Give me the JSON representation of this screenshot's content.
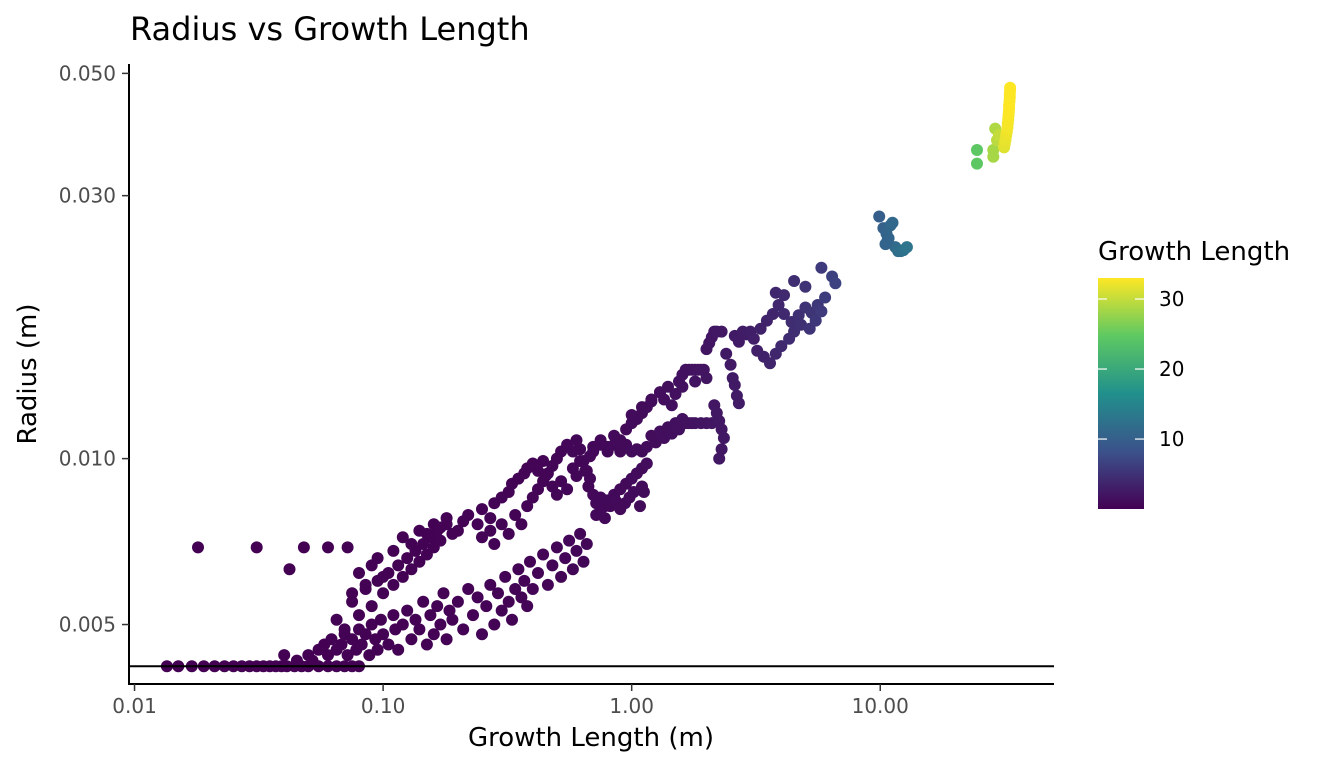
{
  "chart_data": {
    "type": "scatter",
    "title": "Radius vs Growth Length",
    "xlabel": "Growth Length (m)",
    "ylabel": "Radius (m)",
    "x_scale": "log10",
    "y_scale": "log10",
    "xlim": [
      0.0095,
      50
    ],
    "ylim": [
      0.0039,
      0.052
    ],
    "x_ticks": [
      0.01,
      0.1,
      1,
      10
    ],
    "x_tick_labels": [
      "0.01",
      "0.10",
      "1.00",
      "10.00"
    ],
    "y_ticks": [
      0.005,
      0.01,
      0.03,
      0.05
    ],
    "y_tick_labels": [
      "0.005",
      "0.010",
      "0.030",
      "0.050"
    ],
    "hline": 0.0042,
    "grid": false,
    "color_legend": {
      "title": "Growth Length",
      "placement": "right",
      "min": 0.01,
      "max": 33,
      "ticks": [
        10,
        20,
        30
      ],
      "tick_labels": [
        "10",
        "20",
        "30"
      ],
      "palette": [
        "#440154",
        "#3b528b",
        "#21908c",
        "#5ec962",
        "#fde725"
      ]
    },
    "points": [
      [
        0.0135,
        0.0042
      ],
      [
        0.015,
        0.0042
      ],
      [
        0.017,
        0.0042
      ],
      [
        0.019,
        0.0042
      ],
      [
        0.021,
        0.0042
      ],
      [
        0.023,
        0.0042
      ],
      [
        0.025,
        0.0042
      ],
      [
        0.027,
        0.0042
      ],
      [
        0.029,
        0.0042
      ],
      [
        0.031,
        0.0042
      ],
      [
        0.033,
        0.0042
      ],
      [
        0.035,
        0.0042
      ],
      [
        0.037,
        0.0042
      ],
      [
        0.039,
        0.0042
      ],
      [
        0.041,
        0.0042
      ],
      [
        0.044,
        0.0042
      ],
      [
        0.047,
        0.0042
      ],
      [
        0.05,
        0.0042
      ],
      [
        0.055,
        0.0042
      ],
      [
        0.06,
        0.0042
      ],
      [
        0.065,
        0.0042
      ],
      [
        0.07,
        0.0042
      ],
      [
        0.075,
        0.0042
      ],
      [
        0.08,
        0.0042
      ],
      [
        0.018,
        0.0069
      ],
      [
        0.031,
        0.0069
      ],
      [
        0.048,
        0.0069
      ],
      [
        0.06,
        0.0069
      ],
      [
        0.072,
        0.0069
      ],
      [
        0.042,
        0.0063
      ],
      [
        0.04,
        0.0044
      ],
      [
        0.045,
        0.0043
      ],
      [
        0.05,
        0.0044
      ],
      [
        0.052,
        0.0043
      ],
      [
        0.055,
        0.0045
      ],
      [
        0.058,
        0.0046
      ],
      [
        0.06,
        0.0044
      ],
      [
        0.062,
        0.0047
      ],
      [
        0.065,
        0.0045
      ],
      [
        0.068,
        0.0046
      ],
      [
        0.07,
        0.0048
      ],
      [
        0.072,
        0.0044
      ],
      [
        0.075,
        0.0047
      ],
      [
        0.078,
        0.0045
      ],
      [
        0.08,
        0.0049
      ],
      [
        0.082,
        0.0046
      ],
      [
        0.085,
        0.0048
      ],
      [
        0.088,
        0.0044
      ],
      [
        0.09,
        0.005
      ],
      [
        0.093,
        0.0047
      ],
      [
        0.095,
        0.0045
      ],
      [
        0.098,
        0.0051
      ],
      [
        0.1,
        0.0048
      ],
      [
        0.105,
        0.0046
      ],
      [
        0.11,
        0.0052
      ],
      [
        0.112,
        0.0049
      ],
      [
        0.115,
        0.0045
      ],
      [
        0.12,
        0.005
      ],
      [
        0.125,
        0.0053
      ],
      [
        0.13,
        0.0047
      ],
      [
        0.135,
        0.0051
      ],
      [
        0.14,
        0.0049
      ],
      [
        0.145,
        0.0055
      ],
      [
        0.15,
        0.0046
      ],
      [
        0.155,
        0.0052
      ],
      [
        0.16,
        0.0048
      ],
      [
        0.165,
        0.0054
      ],
      [
        0.17,
        0.005
      ],
      [
        0.175,
        0.0057
      ],
      [
        0.18,
        0.0047
      ],
      [
        0.185,
        0.0053
      ],
      [
        0.19,
        0.0051
      ],
      [
        0.2,
        0.0055
      ],
      [
        0.21,
        0.0049
      ],
      [
        0.22,
        0.0058
      ],
      [
        0.23,
        0.0052
      ],
      [
        0.24,
        0.0056
      ],
      [
        0.25,
        0.0048
      ],
      [
        0.26,
        0.0054
      ],
      [
        0.27,
        0.0059
      ],
      [
        0.28,
        0.005
      ],
      [
        0.29,
        0.0057
      ],
      [
        0.3,
        0.0053
      ],
      [
        0.31,
        0.0061
      ],
      [
        0.32,
        0.0055
      ],
      [
        0.33,
        0.0051
      ],
      [
        0.34,
        0.0058
      ],
      [
        0.35,
        0.0063
      ],
      [
        0.36,
        0.0056
      ],
      [
        0.37,
        0.006
      ],
      [
        0.38,
        0.0054
      ],
      [
        0.39,
        0.0065
      ],
      [
        0.4,
        0.0058
      ],
      [
        0.42,
        0.0062
      ],
      [
        0.44,
        0.0067
      ],
      [
        0.46,
        0.0059
      ],
      [
        0.48,
        0.0064
      ],
      [
        0.5,
        0.0069
      ],
      [
        0.52,
        0.0061
      ],
      [
        0.54,
        0.0066
      ],
      [
        0.56,
        0.0071
      ],
      [
        0.58,
        0.0063
      ],
      [
        0.6,
        0.0068
      ],
      [
        0.62,
        0.0073
      ],
      [
        0.64,
        0.0065
      ],
      [
        0.66,
        0.007
      ],
      [
        0.065,
        0.0051
      ],
      [
        0.07,
        0.0049
      ],
      [
        0.075,
        0.0055
      ],
      [
        0.08,
        0.0052
      ],
      [
        0.085,
        0.0058
      ],
      [
        0.09,
        0.0054
      ],
      [
        0.095,
        0.006
      ],
      [
        0.1,
        0.0057
      ],
      [
        0.105,
        0.0062
      ],
      [
        0.11,
        0.0059
      ],
      [
        0.115,
        0.0064
      ],
      [
        0.12,
        0.0061
      ],
      [
        0.125,
        0.0066
      ],
      [
        0.13,
        0.0063
      ],
      [
        0.135,
        0.0068
      ],
      [
        0.14,
        0.0065
      ],
      [
        0.145,
        0.007
      ],
      [
        0.15,
        0.0067
      ],
      [
        0.155,
        0.0072
      ],
      [
        0.16,
        0.0069
      ],
      [
        0.165,
        0.0074
      ],
      [
        0.17,
        0.0071
      ],
      [
        0.18,
        0.0076
      ],
      [
        0.19,
        0.0073
      ],
      [
        0.075,
        0.0057
      ],
      [
        0.08,
        0.0062
      ],
      [
        0.085,
        0.0059
      ],
      [
        0.09,
        0.0064
      ],
      [
        0.095,
        0.0066
      ],
      [
        0.1,
        0.0061
      ],
      [
        0.11,
        0.0068
      ],
      [
        0.12,
        0.0072
      ],
      [
        0.13,
        0.007
      ],
      [
        0.14,
        0.0074
      ],
      [
        0.15,
        0.0073
      ],
      [
        0.16,
        0.0076
      ],
      [
        0.17,
        0.0075
      ],
      [
        0.18,
        0.0078
      ],
      [
        0.2,
        0.0074
      ],
      [
        0.21,
        0.0077
      ],
      [
        0.22,
        0.0079
      ],
      [
        0.24,
        0.0076
      ],
      [
        0.25,
        0.0081
      ],
      [
        0.27,
        0.0078
      ],
      [
        0.28,
        0.0083
      ],
      [
        0.3,
        0.0085
      ],
      [
        0.32,
        0.0087
      ],
      [
        0.33,
        0.009
      ],
      [
        0.35,
        0.0092
      ],
      [
        0.37,
        0.0094
      ],
      [
        0.38,
        0.0096
      ],
      [
        0.4,
        0.0098
      ],
      [
        0.42,
        0.0095
      ],
      [
        0.44,
        0.0099
      ],
      [
        0.25,
        0.0072
      ],
      [
        0.27,
        0.0074
      ],
      [
        0.28,
        0.007
      ],
      [
        0.3,
        0.0076
      ],
      [
        0.32,
        0.0073
      ],
      [
        0.34,
        0.0079
      ],
      [
        0.36,
        0.0076
      ],
      [
        0.38,
        0.0082
      ],
      [
        0.4,
        0.0085
      ],
      [
        0.42,
        0.0088
      ],
      [
        0.44,
        0.0091
      ],
      [
        0.46,
        0.0094
      ],
      [
        0.48,
        0.0097
      ],
      [
        0.5,
        0.01
      ],
      [
        0.52,
        0.0103
      ],
      [
        0.55,
        0.0106
      ],
      [
        0.58,
        0.0103
      ],
      [
        0.6,
        0.0108
      ],
      [
        0.62,
        0.0104
      ],
      [
        0.64,
        0.0099
      ],
      [
        0.66,
        0.0095
      ],
      [
        0.68,
        0.0092
      ],
      [
        0.45,
        0.0093
      ],
      [
        0.48,
        0.0089
      ],
      [
        0.5,
        0.0086
      ],
      [
        0.52,
        0.0091
      ],
      [
        0.55,
        0.0088
      ],
      [
        0.58,
        0.0096
      ],
      [
        0.6,
        0.0093
      ],
      [
        0.62,
        0.0099
      ],
      [
        0.65,
        0.0095
      ],
      [
        0.68,
        0.0101
      ],
      [
        0.7,
        0.0105
      ],
      [
        0.75,
        0.0108
      ],
      [
        0.8,
        0.0105
      ],
      [
        0.85,
        0.011
      ],
      [
        0.9,
        0.0108
      ],
      [
        0.95,
        0.0113
      ],
      [
        1.0,
        0.0116
      ],
      [
        1.05,
        0.0118
      ],
      [
        1.1,
        0.0121
      ],
      [
        1.15,
        0.0124
      ],
      [
        1.2,
        0.0127
      ],
      [
        0.7,
        0.0103
      ],
      [
        0.75,
        0.0106
      ],
      [
        0.8,
        0.0103
      ],
      [
        0.85,
        0.0106
      ],
      [
        0.9,
        0.0103
      ],
      [
        0.95,
        0.0106
      ],
      [
        1.0,
        0.0103
      ],
      [
        1.05,
        0.0104
      ],
      [
        1.1,
        0.0103
      ],
      [
        1.15,
        0.0105
      ],
      [
        0.67,
        0.0089
      ],
      [
        0.7,
        0.0086
      ],
      [
        0.72,
        0.0083
      ],
      [
        0.75,
        0.0085
      ],
      [
        0.78,
        0.0082
      ],
      [
        0.8,
        0.0084
      ],
      [
        0.85,
        0.0086
      ],
      [
        0.9,
        0.0088
      ],
      [
        0.95,
        0.009
      ],
      [
        1.0,
        0.0092
      ],
      [
        1.05,
        0.0094
      ],
      [
        1.1,
        0.0096
      ],
      [
        1.15,
        0.0098
      ],
      [
        0.72,
        0.0079
      ],
      [
        0.75,
        0.0081
      ],
      [
        0.78,
        0.0078
      ],
      [
        0.82,
        0.0082
      ],
      [
        0.86,
        0.0084
      ],
      [
        0.9,
        0.0081
      ],
      [
        0.94,
        0.0083
      ],
      [
        0.98,
        0.0085
      ],
      [
        1.02,
        0.0087
      ],
      [
        1.08,
        0.0082
      ],
      [
        1.1,
        0.0089
      ],
      [
        1.12,
        0.0087
      ],
      [
        1.2,
        0.011
      ],
      [
        1.25,
        0.0107
      ],
      [
        1.3,
        0.0112
      ],
      [
        1.35,
        0.0109
      ],
      [
        1.4,
        0.0114
      ],
      [
        1.45,
        0.0111
      ],
      [
        1.5,
        0.0116
      ],
      [
        1.55,
        0.0113
      ],
      [
        1.6,
        0.0118
      ],
      [
        1.65,
        0.0116
      ],
      [
        1.7,
        0.0116
      ],
      [
        1.75,
        0.0116
      ],
      [
        1.8,
        0.0116
      ],
      [
        1.9,
        0.0116
      ],
      [
        2.0,
        0.0116
      ],
      [
        2.1,
        0.0116
      ],
      [
        1.3,
        0.0132
      ],
      [
        1.35,
        0.0128
      ],
      [
        1.4,
        0.0135
      ],
      [
        1.5,
        0.0131
      ],
      [
        1.55,
        0.0138
      ],
      [
        1.6,
        0.0142
      ],
      [
        1.65,
        0.0145
      ],
      [
        1.7,
        0.0145
      ],
      [
        1.75,
        0.0145
      ],
      [
        1.8,
        0.0145
      ],
      [
        1.85,
        0.0145
      ],
      [
        1.9,
        0.0145
      ],
      [
        1.95,
        0.0145
      ],
      [
        2.0,
        0.0158
      ],
      [
        2.05,
        0.0162
      ],
      [
        2.1,
        0.0166
      ],
      [
        2.15,
        0.017
      ],
      [
        2.2,
        0.017
      ],
      [
        2.3,
        0.017
      ],
      [
        2.4,
        0.0155
      ],
      [
        2.5,
        0.0148
      ],
      [
        2.55,
        0.014
      ],
      [
        2.6,
        0.0136
      ],
      [
        2.65,
        0.013
      ],
      [
        2.7,
        0.0126
      ],
      [
        2.15,
        0.0125
      ],
      [
        2.2,
        0.0121
      ],
      [
        2.25,
        0.0117
      ],
      [
        2.3,
        0.0113
      ],
      [
        2.35,
        0.0109
      ],
      [
        2.3,
        0.0104
      ],
      [
        2.25,
        0.01
      ],
      [
        1.0,
        0.012
      ],
      [
        1.1,
        0.0124
      ],
      [
        1.2,
        0.0128
      ],
      [
        1.3,
        0.0132
      ],
      [
        1.45,
        0.0125
      ],
      [
        1.6,
        0.0135
      ],
      [
        1.8,
        0.0138
      ],
      [
        2.0,
        0.014
      ],
      [
        2.6,
        0.0167
      ],
      [
        2.7,
        0.0163
      ],
      [
        2.8,
        0.017
      ],
      [
        2.9,
        0.0168
      ],
      [
        3.0,
        0.017
      ],
      [
        3.1,
        0.0165
      ],
      [
        3.3,
        0.0172
      ],
      [
        3.5,
        0.0178
      ],
      [
        3.7,
        0.0183
      ],
      [
        3.9,
        0.019
      ],
      [
        4.1,
        0.0183
      ],
      [
        4.4,
        0.0177
      ],
      [
        4.7,
        0.0182
      ],
      [
        5.0,
        0.0188
      ],
      [
        5.3,
        0.0184
      ],
      [
        5.6,
        0.019
      ],
      [
        6.0,
        0.0196
      ],
      [
        3.2,
        0.0157
      ],
      [
        3.4,
        0.0153
      ],
      [
        3.6,
        0.0149
      ],
      [
        3.8,
        0.0155
      ],
      [
        4.0,
        0.016
      ],
      [
        4.3,
        0.0165
      ],
      [
        4.5,
        0.017
      ],
      [
        4.8,
        0.0175
      ],
      [
        5.2,
        0.0172
      ],
      [
        5.5,
        0.0178
      ],
      [
        5.8,
        0.0185
      ],
      [
        3.8,
        0.02
      ],
      [
        4.1,
        0.0198
      ],
      [
        4.5,
        0.021
      ],
      [
        5.0,
        0.0205
      ],
      [
        5.8,
        0.0222
      ],
      [
        6.4,
        0.0214
      ],
      [
        6.6,
        0.0208
      ],
      [
        9.9,
        0.0275
      ],
      [
        10.3,
        0.0262
      ],
      [
        10.6,
        0.0256
      ],
      [
        10.8,
        0.0251
      ],
      [
        11.0,
        0.0265
      ],
      [
        11.2,
        0.0268
      ],
      [
        11.5,
        0.0242
      ],
      [
        11.8,
        0.0238
      ],
      [
        12.1,
        0.0238
      ],
      [
        12.4,
        0.0239
      ],
      [
        12.8,
        0.0242
      ],
      [
        10.5,
        0.0245
      ],
      [
        10.7,
        0.0249
      ],
      [
        24.5,
        0.0343
      ],
      [
        24.5,
        0.0363
      ],
      [
        28.5,
        0.0363
      ],
      [
        28.5,
        0.0353
      ],
      [
        29.0,
        0.0397
      ],
      [
        29.5,
        0.0378
      ],
      [
        30.0,
        0.0386
      ],
      [
        31.5,
        0.0367
      ],
      [
        31.7,
        0.0373
      ],
      [
        31.9,
        0.0379
      ],
      [
        32.1,
        0.0386
      ],
      [
        32.3,
        0.0392
      ],
      [
        32.5,
        0.0399
      ],
      [
        32.6,
        0.0406
      ],
      [
        32.7,
        0.0412
      ],
      [
        32.8,
        0.0419
      ],
      [
        32.9,
        0.0425
      ],
      [
        33.0,
        0.0432
      ],
      [
        33.0,
        0.0438
      ],
      [
        33.1,
        0.0445
      ],
      [
        33.2,
        0.0452
      ],
      [
        33.2,
        0.0458
      ],
      [
        33.3,
        0.0465
      ],
      [
        33.3,
        0.0471
      ]
    ]
  }
}
